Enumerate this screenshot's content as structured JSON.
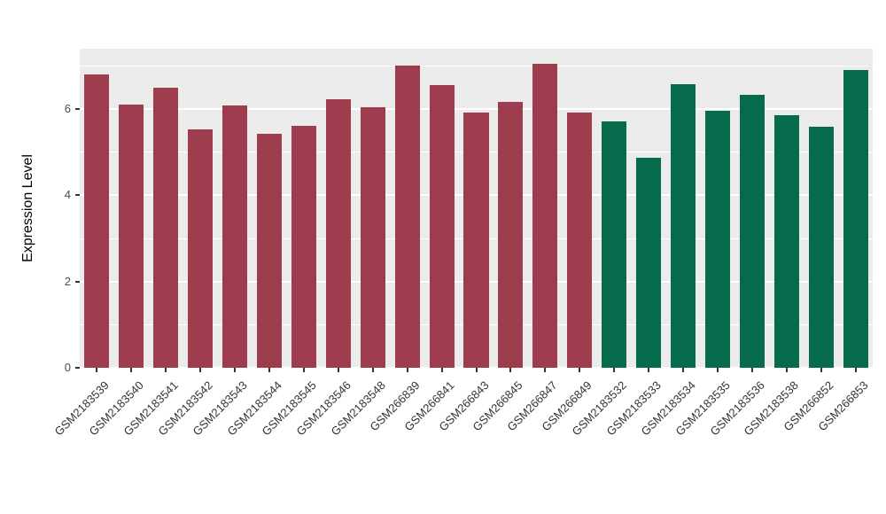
{
  "chart_data": {
    "type": "bar",
    "title": "",
    "xlabel": "",
    "ylabel": "Expression Level",
    "ylim": [
      0,
      7.4
    ],
    "yticks": [
      0,
      2,
      4,
      6
    ],
    "yticks_minor": [
      1,
      3,
      5,
      7
    ],
    "grid": true,
    "legend_position": "none",
    "panel_background": "#EBEBEB",
    "grid_color": "#FFFFFF",
    "categories": [
      "GSM2183539",
      "GSM2183540",
      "GSM2183541",
      "GSM2183542",
      "GSM2183543",
      "GSM2183544",
      "GSM2183545",
      "GSM2183546",
      "GSM2183548",
      "GSM266839",
      "GSM266841",
      "GSM266843",
      "GSM266845",
      "GSM266847",
      "GSM266849",
      "GSM2183532",
      "GSM2183533",
      "GSM2183534",
      "GSM2183535",
      "GSM2183536",
      "GSM2183538",
      "GSM266852",
      "GSM266853"
    ],
    "values": [
      6.8,
      6.1,
      6.5,
      5.52,
      6.08,
      5.42,
      5.62,
      6.22,
      6.05,
      7.02,
      6.55,
      5.93,
      6.16,
      7.06,
      5.92,
      5.72,
      4.88,
      6.57,
      5.97,
      6.33,
      5.85,
      5.6,
      6.9
    ],
    "groups": [
      "group_a",
      "group_a",
      "group_a",
      "group_a",
      "group_a",
      "group_a",
      "group_a",
      "group_a",
      "group_a",
      "group_a",
      "group_a",
      "group_a",
      "group_a",
      "group_a",
      "group_a",
      "group_b",
      "group_b",
      "group_b",
      "group_b",
      "group_b",
      "group_b",
      "group_b",
      "group_b"
    ],
    "colors": {
      "group_a": "#9D3C4D",
      "group_b": "#066B4D"
    }
  }
}
